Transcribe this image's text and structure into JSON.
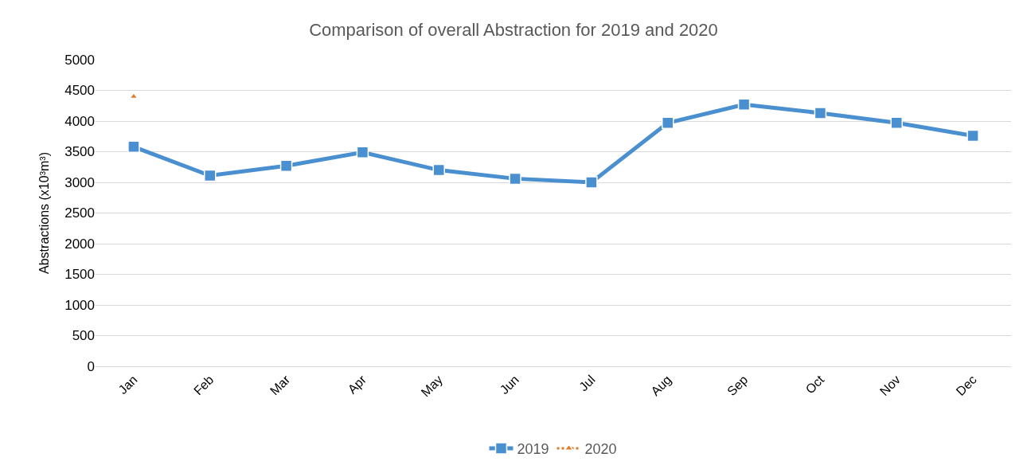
{
  "chart_data": {
    "type": "line",
    "title": "Comparison of overall Abstraction for 2019 and 2020",
    "ylabel": "Abstractions (x10³m³)",
    "categories": [
      "Jan",
      "Feb",
      "Mar",
      "Apr",
      "May",
      "Jun",
      "Jul",
      "Aug",
      "Sep",
      "Oct",
      "Nov",
      "Dec"
    ],
    "series": [
      {
        "name": "2019",
        "color": "#4a90d0",
        "marker": "square",
        "line_style": "solid",
        "values": [
          3580,
          3110,
          3270,
          3490,
          3200,
          3060,
          3000,
          3970,
          4270,
          4130,
          3970,
          3760
        ]
      },
      {
        "name": "2020",
        "color": "#e07b2c",
        "marker": "triangle",
        "line_style": "dotted",
        "values": [
          4400,
          null,
          null,
          null,
          null,
          null,
          null,
          null,
          null,
          null,
          null,
          null
        ]
      }
    ],
    "ylim": [
      0,
      5000
    ],
    "yticks": [
      0,
      500,
      1000,
      1500,
      2000,
      2500,
      3000,
      3500,
      4000,
      4500,
      5000
    ],
    "grid": "y",
    "legend": "bottom"
  }
}
